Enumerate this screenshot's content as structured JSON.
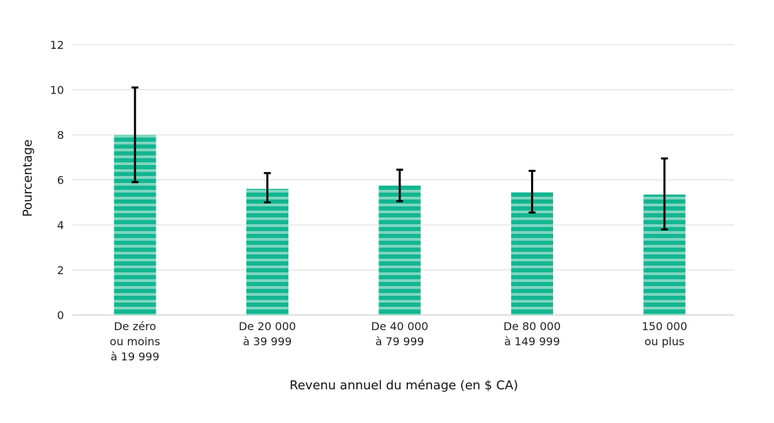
{
  "chart_data": {
    "type": "bar",
    "title": "",
    "xlabel": "Revenu annuel du ménage (en $ CA)",
    "ylabel": "Pourcentage",
    "ylim": [
      0,
      12
    ],
    "yticks": [
      0,
      2,
      4,
      6,
      8,
      10,
      12
    ],
    "grid": true,
    "categories": [
      [
        "De zéro",
        "ou moins",
        "à 19 999"
      ],
      [
        "De 20 000",
        "à 39 999"
      ],
      [
        "De 40 000",
        "à 79 999"
      ],
      [
        "De 80 000",
        "à 149 999"
      ],
      [
        "150 000",
        "ou plus"
      ]
    ],
    "values": [
      8.0,
      5.6,
      5.75,
      5.45,
      5.35
    ],
    "error_low": [
      5.9,
      5.0,
      5.05,
      4.55,
      3.8
    ],
    "error_high": [
      10.1,
      6.3,
      6.45,
      6.4,
      6.95
    ],
    "colors": {
      "bar": "#14b591",
      "stripe": "#7fd6c0"
    }
  }
}
